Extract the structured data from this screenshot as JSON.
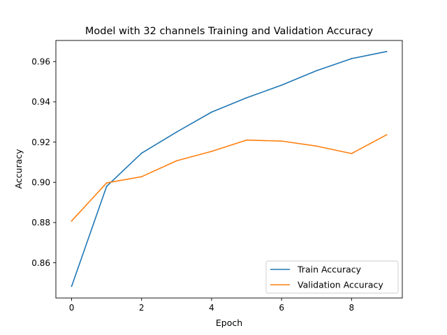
{
  "chart_data": {
    "type": "line",
    "title": "Model with 32 channels Training and Validation Accuracy",
    "xlabel": "Epoch",
    "ylabel": "Accuracy",
    "x": [
      0,
      1,
      2,
      3,
      4,
      5,
      6,
      7,
      8,
      9
    ],
    "xlim": [
      -0.45,
      9.45
    ],
    "ylim": [
      0.8425,
      0.9705
    ],
    "xticks": [
      0,
      2,
      4,
      6,
      8
    ],
    "xtick_labels": [
      "0",
      "2",
      "4",
      "6",
      "8"
    ],
    "yticks": [
      0.86,
      0.88,
      0.9,
      0.92,
      0.94,
      0.96
    ],
    "ytick_labels": [
      "0.86",
      "0.88",
      "0.90",
      "0.92",
      "0.94",
      "0.96"
    ],
    "grid": false,
    "legend_position": "lower-right",
    "series": [
      {
        "name": "Train Accuracy",
        "color": "#1f77b4",
        "values": [
          0.8483,
          0.898,
          0.9145,
          0.925,
          0.9349,
          0.942,
          0.9483,
          0.9555,
          0.9615,
          0.965
        ]
      },
      {
        "name": "Validation Accuracy",
        "color": "#ff7f0e",
        "values": [
          0.8808,
          0.8997,
          0.9028,
          0.9107,
          0.9154,
          0.921,
          0.9205,
          0.918,
          0.9143,
          0.9236
        ]
      }
    ]
  }
}
